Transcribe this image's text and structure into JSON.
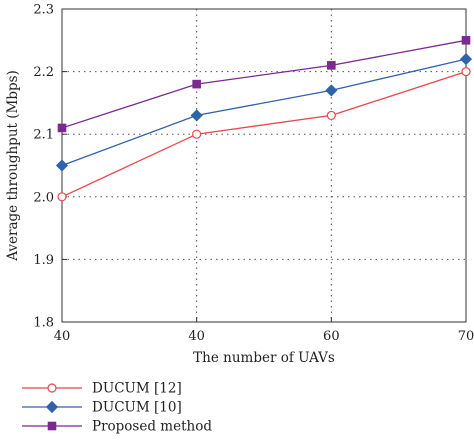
{
  "chart_data": {
    "type": "line",
    "title": "",
    "xlabel": "The number of UAVs",
    "ylabel": "Average throughput (Mbps)",
    "categories": [
      "40",
      "40",
      "60",
      "70"
    ],
    "ylim": [
      1.8,
      2.3
    ],
    "yticks": [
      "1.8",
      "1.9",
      "2.0",
      "2.1",
      "2.2",
      "2.3"
    ],
    "grid": true,
    "legend_position": "bottom-left",
    "series": [
      {
        "name": "DUCUM [12]",
        "values": [
          2.0,
          2.1,
          2.13,
          2.2
        ],
        "color": "#e8474b",
        "marker": "circle"
      },
      {
        "name": "DUCUM [10]",
        "values": [
          2.05,
          2.13,
          2.17,
          2.22
        ],
        "color": "#2f63ad",
        "marker": "diamond"
      },
      {
        "name": "Proposed method",
        "values": [
          2.11,
          2.18,
          2.21,
          2.25
        ],
        "color": "#7a2a91",
        "marker": "square"
      }
    ]
  }
}
